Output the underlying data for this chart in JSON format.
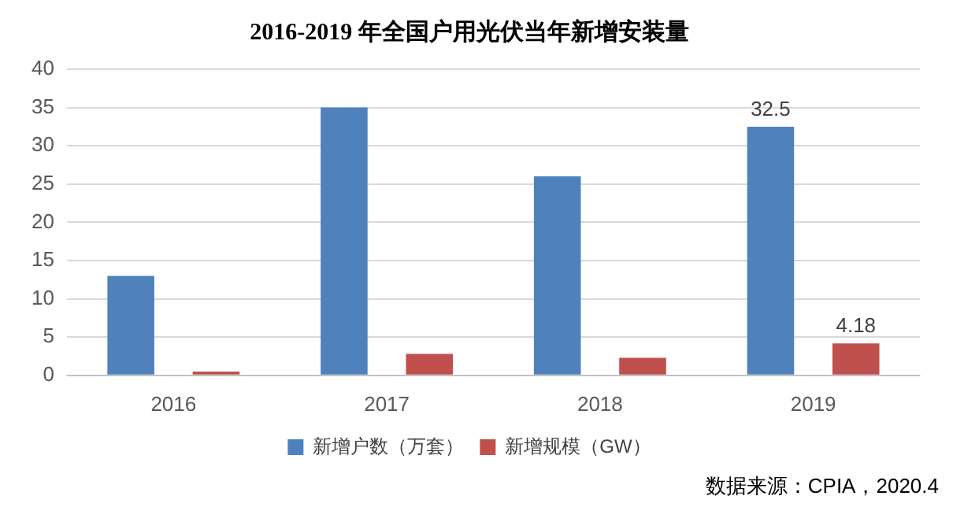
{
  "chart_data": {
    "type": "bar",
    "title": "2016-2019 年全国户用光伏当年新增安装量",
    "categories": [
      "2016",
      "2017",
      "2018",
      "2019"
    ],
    "series": [
      {
        "name": "新增户数（万套）",
        "color": "#4f81bd",
        "values": [
          13,
          35,
          26,
          32.5
        ],
        "value_labels": [
          null,
          null,
          null,
          "32.5"
        ]
      },
      {
        "name": "新增规模（GW）",
        "color": "#c0504d",
        "values": [
          0.5,
          2.8,
          2.3,
          4.18
        ],
        "value_labels": [
          null,
          null,
          null,
          "4.18"
        ]
      }
    ],
    "ylim": [
      0,
      40
    ],
    "yticks": [
      0,
      5,
      10,
      15,
      20,
      25,
      30,
      35,
      40
    ],
    "grid": "y",
    "legend": "bottom",
    "annotations": [
      "数据来源：CPIA，2020.4"
    ]
  }
}
